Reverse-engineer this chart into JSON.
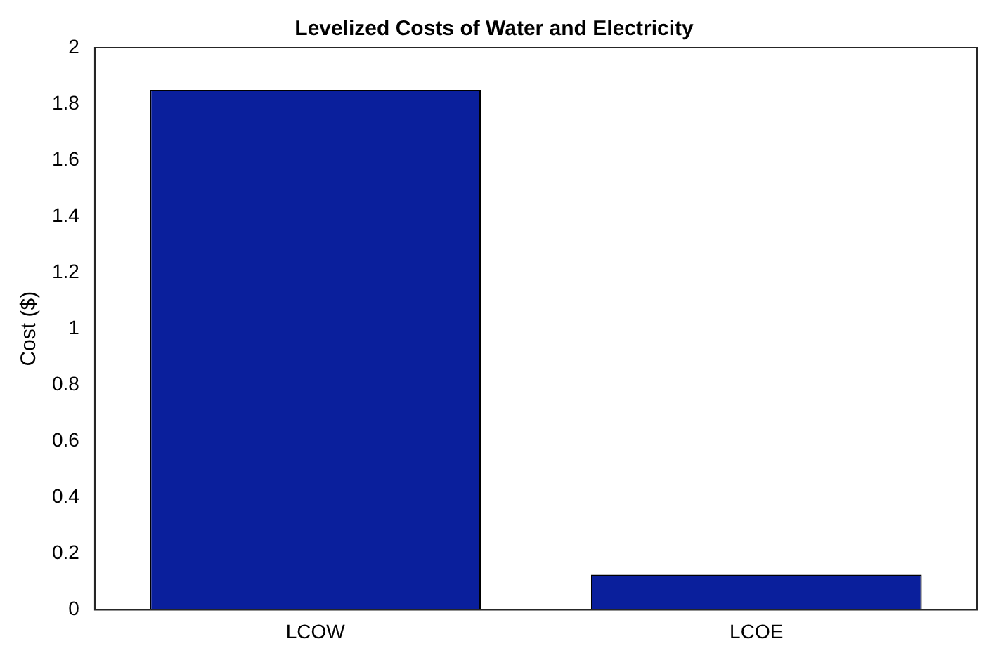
{
  "chart_data": {
    "type": "bar",
    "title": "Levelized Costs of Water and Electricity",
    "ylabel": "Cost ($)",
    "categories": [
      "LCOW",
      "LCOE"
    ],
    "values": [
      1.85,
      0.125
    ],
    "color": "#0a1f9c",
    "ylim": [
      0,
      2
    ],
    "yticks": [
      0,
      0.2,
      0.4,
      0.6,
      0.8,
      1,
      1.2,
      1.4,
      1.6,
      1.8,
      2
    ],
    "grid": false,
    "legend": false
  }
}
